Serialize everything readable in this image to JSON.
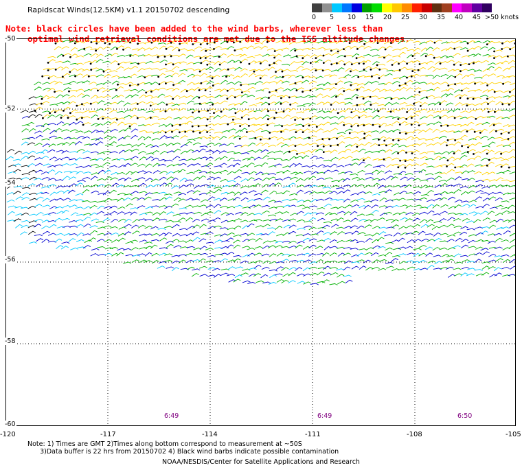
{
  "title": "Rapidscat Winds(12.5KM) v1.1 20150702 descending",
  "note": {
    "line1": "Note: black circles have been added to the wind barbs, wherever less than",
    "line2": "optimal wind retrieval conditions are met due to the ISS altitude changes."
  },
  "legend": {
    "colors": [
      "#404040",
      "#909090",
      "#00c8ff",
      "#0078ff",
      "#0000e0",
      "#00a000",
      "#00dc00",
      "#ffff00",
      "#ffc800",
      "#ff8c00",
      "#ff2000",
      "#c80000",
      "#603010",
      "#a04020",
      "#ff00ff",
      "#c000c0",
      "#6000a0",
      "#300060"
    ],
    "ticks": [
      "0",
      "5",
      "10",
      "15",
      "20",
      "25",
      "30",
      "35",
      "40",
      "45",
      ">50 knots"
    ]
  },
  "map": {
    "lat_labels": [
      "-50",
      "-52",
      "-54",
      "-56",
      "-58",
      "-60"
    ],
    "lon_labels": [
      "-120",
      "-117",
      "-114",
      "-111",
      "-108",
      "-105"
    ],
    "time_labels": [
      "6:49",
      "6:49",
      "6:50"
    ]
  },
  "footer": {
    "line1": "Note: 1) Times are GMT 2)Times along bottom correspond to measurement at ~50S",
    "line2": "      3)Data buffer is 22 hrs from 20150702 4) Black wind barbs indicate possible contamination"
  },
  "credit": "NOAA/NESDIS/Center for Satellite Applications and Research",
  "colors": {
    "barb_yellow": "#ffd200",
    "barb_green": "#00b000",
    "barb_blue": "#0000d0",
    "barb_cyan": "#00c8ff",
    "barb_black": "#000000"
  }
}
